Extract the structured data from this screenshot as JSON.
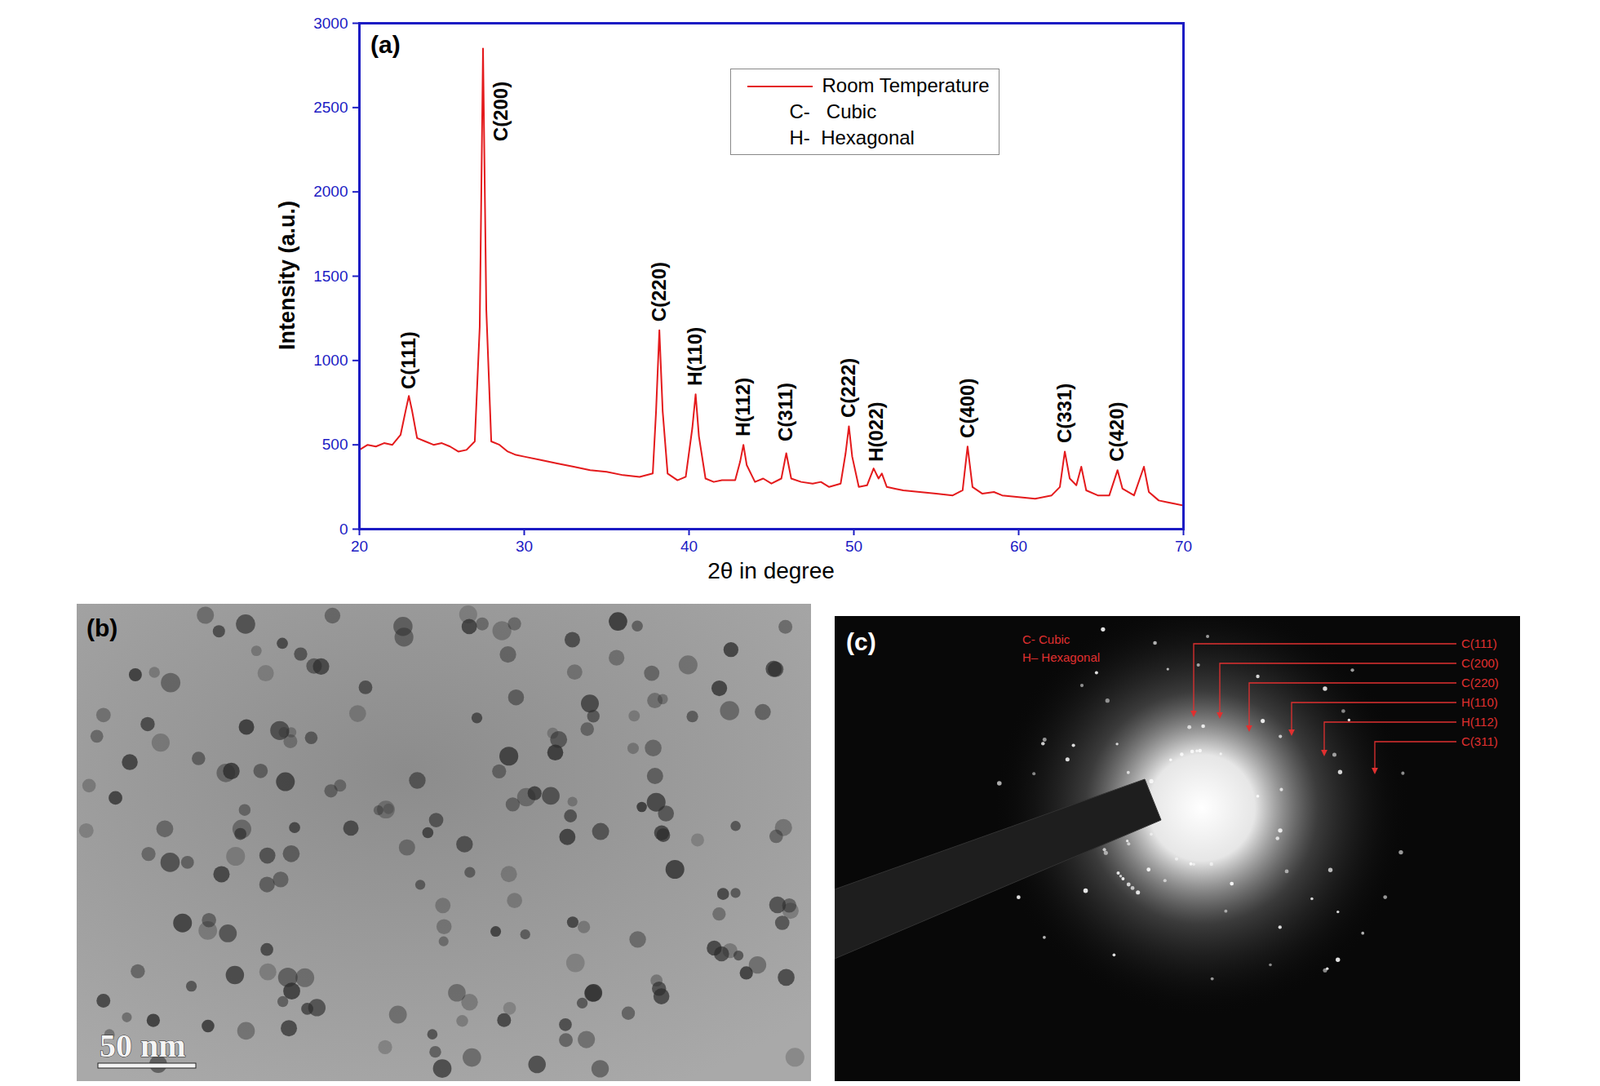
{
  "chart_data": {
    "type": "line",
    "panel": "(a)",
    "xlabel": "2θ in degree",
    "ylabel": "Intensity (a.u.)",
    "x": [
      20.0,
      20.5,
      21.0,
      21.5,
      22.0,
      22.5,
      22.8,
      23.0,
      23.2,
      23.5,
      24.0,
      24.5,
      25.0,
      25.5,
      26.0,
      26.5,
      27.0,
      27.3,
      27.5,
      27.7,
      28.0,
      28.5,
      29.0,
      29.5,
      30.0,
      31.0,
      32.0,
      33.0,
      34.0,
      35.0,
      36.0,
      37.0,
      37.8,
      38.0,
      38.2,
      38.4,
      38.7,
      39.3,
      39.8,
      40.2,
      40.4,
      40.6,
      41.0,
      41.5,
      42.0,
      42.8,
      43.1,
      43.3,
      43.5,
      44.0,
      44.5,
      45.0,
      45.6,
      45.9,
      46.2,
      46.8,
      47.5,
      48.0,
      48.5,
      49.2,
      49.5,
      49.7,
      49.9,
      50.3,
      50.8,
      51.2,
      51.5,
      51.7,
      52.0,
      52.5,
      53.0,
      54.0,
      55.0,
      56.0,
      56.6,
      56.9,
      57.2,
      57.8,
      58.5,
      59.0,
      60.0,
      61.0,
      62.0,
      62.5,
      62.8,
      63.1,
      63.5,
      63.8,
      64.1,
      64.8,
      65.5,
      66.0,
      66.3,
      67.0,
      67.6,
      67.9,
      68.5,
      69.0,
      69.5,
      70.0
    ],
    "series": [
      {
        "name": "Room Temperature",
        "color": "#e41a1c",
        "values": [
          470,
          500,
          490,
          510,
          500,
          560,
          700,
          790,
          700,
          540,
          520,
          500,
          510,
          490,
          460,
          470,
          520,
          1200,
          2850,
          1300,
          520,
          500,
          460,
          440,
          430,
          410,
          390,
          370,
          350,
          340,
          320,
          310,
          330,
          700,
          1180,
          700,
          330,
          290,
          310,
          600,
          800,
          550,
          300,
          280,
          290,
          290,
          400,
          500,
          380,
          280,
          300,
          270,
          300,
          450,
          300,
          280,
          270,
          280,
          250,
          270,
          450,
          610,
          430,
          250,
          260,
          360,
          300,
          330,
          250,
          240,
          230,
          220,
          210,
          200,
          230,
          490,
          250,
          210,
          220,
          200,
          190,
          180,
          200,
          250,
          460,
          300,
          260,
          370,
          230,
          200,
          200,
          350,
          240,
          200,
          370,
          220,
          170,
          160,
          150,
          140
        ]
      }
    ],
    "xlim": [
      20,
      70
    ],
    "ylim": [
      0,
      3000
    ],
    "xticks": [
      20,
      30,
      40,
      50,
      60,
      70
    ],
    "yticks": [
      0,
      500,
      1000,
      1500,
      2000,
      2500,
      3000
    ],
    "grid": false,
    "legend": "top-right",
    "legend_notes": [
      "C-   Cubic",
      "H-  Hexagonal"
    ],
    "annotations": [
      {
        "text": "C(111)",
        "x": 23.0,
        "y": 830
      },
      {
        "text": "C(200)",
        "x": 28.6,
        "y": 2300
      },
      {
        "text": "C(220)",
        "x": 38.2,
        "y": 1230
      },
      {
        "text": "H(110)",
        "x": 40.4,
        "y": 850
      },
      {
        "text": "H(112)",
        "x": 43.3,
        "y": 550
      },
      {
        "text": "C(311)",
        "x": 45.9,
        "y": 520
      },
      {
        "text": "C(222)",
        "x": 49.7,
        "y": 660
      },
      {
        "text": "H(022)",
        "x": 51.4,
        "y": 400
      },
      {
        "text": "C(400)",
        "x": 56.9,
        "y": 540
      },
      {
        "text": "C(331)",
        "x": 62.8,
        "y": 510
      },
      {
        "text": "C(420)",
        "x": 66.0,
        "y": 400
      }
    ]
  },
  "images": [
    {
      "panel": "(b)",
      "scale_bar": "50 nm"
    },
    {
      "panel": "(c)",
      "legend_notes": [
        "C- Cubic",
        "H– Hexagonal"
      ],
      "ring_labels": [
        "C(111)",
        "C(200)",
        "C(220)",
        "H(110)",
        "H(112)",
        "C(311)"
      ]
    }
  ]
}
